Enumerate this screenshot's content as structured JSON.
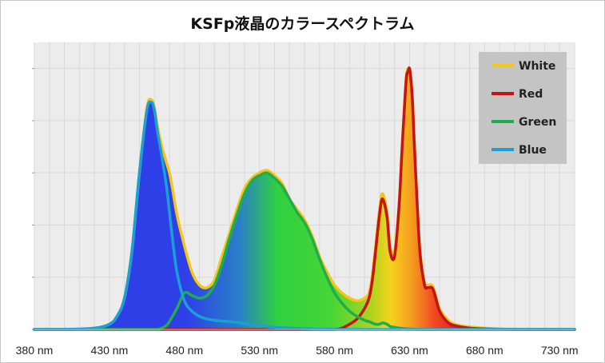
{
  "chart_data": {
    "type": "line",
    "title": "KSFp液晶のカラースペクトラム",
    "xlabel": "",
    "ylabel": "",
    "x_unit": "nm",
    "xlim": [
      380,
      740
    ],
    "ylim": [
      0,
      1.1
    ],
    "x_ticks": [
      380,
      430,
      480,
      530,
      580,
      630,
      680,
      730
    ],
    "x_tick_labels": [
      "380 nm",
      "430 nm",
      "480 nm",
      "530 nm",
      "580 nm",
      "630 nm",
      "680 nm",
      "730 nm"
    ],
    "y_ticks": [
      0,
      0.2,
      0.4,
      0.6,
      0.8,
      1.0
    ],
    "grid": true,
    "legend_position": "top-right",
    "x": [
      380,
      400,
      420,
      430,
      435,
      440,
      445,
      450,
      455,
      458,
      460,
      462,
      465,
      468,
      470,
      472,
      475,
      480,
      485,
      490,
      495,
      500,
      505,
      510,
      515,
      520,
      525,
      530,
      535,
      540,
      545,
      550,
      555,
      560,
      565,
      570,
      575,
      580,
      585,
      590,
      595,
      600,
      603,
      605,
      607,
      610,
      612,
      615,
      617,
      620,
      623,
      625,
      627,
      628,
      629,
      630,
      631,
      632,
      633,
      635,
      637,
      640,
      642,
      645,
      647,
      650,
      655,
      660,
      670,
      680,
      700,
      720,
      740
    ],
    "series": [
      {
        "name": "White",
        "color": "#f5c518",
        "values": [
          0,
          0,
          0.005,
          0.02,
          0.05,
          0.12,
          0.3,
          0.6,
          0.85,
          0.88,
          0.85,
          0.78,
          0.7,
          0.64,
          0.6,
          0.54,
          0.44,
          0.32,
          0.22,
          0.17,
          0.16,
          0.19,
          0.28,
          0.37,
          0.46,
          0.54,
          0.58,
          0.6,
          0.61,
          0.59,
          0.56,
          0.5,
          0.46,
          0.42,
          0.36,
          0.28,
          0.22,
          0.17,
          0.14,
          0.12,
          0.11,
          0.12,
          0.14,
          0.2,
          0.3,
          0.46,
          0.52,
          0.45,
          0.32,
          0.3,
          0.48,
          0.7,
          0.9,
          0.98,
          1.0,
          1.0,
          0.96,
          0.88,
          0.74,
          0.5,
          0.3,
          0.18,
          0.17,
          0.17,
          0.14,
          0.08,
          0.04,
          0.02,
          0.01,
          0.005,
          0,
          0,
          0
        ]
      },
      {
        "name": "Red",
        "color": "#c41414",
        "values": [
          0,
          0,
          0,
          0,
          0,
          0,
          0,
          0,
          0,
          0,
          0,
          0,
          0,
          0,
          0,
          0,
          0,
          0,
          0,
          0,
          0,
          0,
          0,
          0,
          0,
          0,
          0,
          0,
          0,
          0,
          0,
          0,
          0,
          0,
          0,
          0,
          0,
          0,
          0.005,
          0.02,
          0.04,
          0.08,
          0.12,
          0.18,
          0.28,
          0.44,
          0.5,
          0.43,
          0.3,
          0.28,
          0.47,
          0.69,
          0.89,
          0.97,
          0.99,
          1.0,
          0.95,
          0.87,
          0.73,
          0.49,
          0.29,
          0.17,
          0.16,
          0.16,
          0.13,
          0.07,
          0.03,
          0.015,
          0.005,
          0.002,
          0,
          0,
          0
        ]
      },
      {
        "name": "Green",
        "color": "#1fae4b",
        "values": [
          0,
          0,
          0,
          0,
          0,
          0,
          0,
          0,
          0,
          0,
          0,
          0,
          0.005,
          0.015,
          0.03,
          0.05,
          0.08,
          0.14,
          0.13,
          0.12,
          0.13,
          0.17,
          0.25,
          0.35,
          0.44,
          0.52,
          0.57,
          0.59,
          0.6,
          0.58,
          0.55,
          0.5,
          0.45,
          0.41,
          0.35,
          0.27,
          0.2,
          0.14,
          0.1,
          0.07,
          0.05,
          0.035,
          0.03,
          0.025,
          0.02,
          0.02,
          0.025,
          0.02,
          0.012,
          0.008,
          0.005,
          0.004,
          0.003,
          0.003,
          0.002,
          0.002,
          0.002,
          0.001,
          0.001,
          0,
          0,
          0,
          0,
          0,
          0,
          0,
          0,
          0,
          0,
          0,
          0,
          0,
          0
        ]
      },
      {
        "name": "Blue",
        "color": "#1b9fd4",
        "values": [
          0,
          0,
          0.005,
          0.02,
          0.05,
          0.12,
          0.3,
          0.6,
          0.84,
          0.87,
          0.84,
          0.76,
          0.66,
          0.55,
          0.45,
          0.35,
          0.22,
          0.11,
          0.07,
          0.05,
          0.04,
          0.035,
          0.032,
          0.03,
          0.027,
          0.023,
          0.018,
          0.014,
          0.01,
          0.008,
          0.006,
          0.005,
          0.004,
          0.003,
          0.002,
          0.001,
          0.001,
          0,
          0,
          0,
          0,
          0,
          0,
          0,
          0,
          0,
          0,
          0,
          0,
          0,
          0,
          0,
          0,
          0,
          0,
          0,
          0,
          0,
          0,
          0,
          0,
          0,
          0,
          0,
          0,
          0,
          0,
          0,
          0,
          0,
          0,
          0,
          0
        ]
      }
    ]
  }
}
